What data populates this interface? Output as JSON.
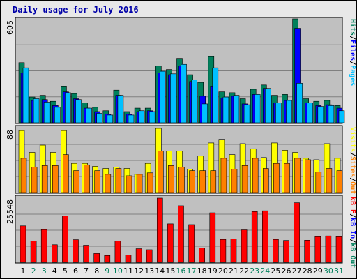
{
  "title": "Daily usage for July 2016",
  "colors": {
    "hits": "#00805c",
    "files": "#0000ff",
    "pages": "#00c0ff",
    "visits": "#ffff00",
    "sites": "#ff8000",
    "kbytes": "#ff0000",
    "label_green": "#00805c",
    "label_blue": "#0000ff",
    "label_cyan": "#00c0ff",
    "label_yellow": "#ffff00",
    "label_orange": "#ff8000",
    "label_red": "#ff0000",
    "label_sep": "#000000",
    "weekend_day": "#00805c",
    "weekday": "#000000"
  },
  "chart_data": [
    {
      "type": "bar",
      "panel": "top",
      "max_label": "605",
      "ylim": [
        0,
        605
      ],
      "legend": [
        {
          "text": "Hits",
          "color_key": "label_green"
        },
        {
          "text": "/",
          "color_key": "label_sep"
        },
        {
          "text": "Files",
          "color_key": "label_blue"
        },
        {
          "text": "/",
          "color_key": "label_sep"
        },
        {
          "text": "Pages",
          "color_key": "label_cyan"
        }
      ],
      "series": [
        {
          "name": "Hits",
          "color_key": "hits",
          "values": [
            350,
            150,
            160,
            125,
            210,
            170,
            115,
            90,
            70,
            190,
            65,
            85,
            85,
            330,
            310,
            375,
            280,
            235,
            385,
            180,
            175,
            140,
            195,
            220,
            160,
            165,
            605,
            140,
            125,
            130,
            100
          ]
        },
        {
          "name": "Files",
          "color_key": "files",
          "values": [
            290,
            130,
            135,
            100,
            180,
            140,
            85,
            65,
            50,
            160,
            50,
            65,
            70,
            290,
            280,
            330,
            240,
            155,
            210,
            145,
            155,
            110,
            165,
            200,
            115,
            130,
            550,
            115,
            100,
            105,
            85
          ]
        },
        {
          "name": "Pages",
          "color_key": "pages",
          "values": [
            320,
            140,
            120,
            90,
            175,
            135,
            85,
            55,
            45,
            160,
            45,
            70,
            65,
            300,
            285,
            340,
            250,
            110,
            320,
            150,
            160,
            105,
            165,
            200,
            115,
            130,
            230,
            115,
            95,
            100,
            70
          ]
        }
      ]
    },
    {
      "type": "bar",
      "panel": "middle",
      "max_label": "88",
      "ylim": [
        0,
        88
      ],
      "legend": [
        {
          "text": "Visits",
          "color_key": "label_yellow"
        },
        {
          "text": "/",
          "color_key": "label_sep"
        },
        {
          "text": "Sites",
          "color_key": "label_orange"
        },
        {
          "text": "/",
          "color_key": "label_sep"
        },
        {
          "text": "Out",
          "color_key": "label_orange"
        }
      ],
      "series": [
        {
          "name": "Visits",
          "color_key": "visits",
          "values": [
            85,
            55,
            65,
            55,
            85,
            40,
            40,
            36,
            33,
            35,
            33,
            25,
            40,
            88,
            57,
            57,
            32,
            50,
            68,
            73,
            52,
            67,
            60,
            48,
            68,
            58,
            55,
            47,
            45,
            67,
            47
          ]
        },
        {
          "name": "Sites",
          "color_key": "sites",
          "values": [
            47,
            35,
            37,
            37,
            52,
            30,
            38,
            30,
            25,
            33,
            23,
            25,
            27,
            57,
            37,
            35,
            30,
            30,
            30,
            47,
            32,
            37,
            47,
            33,
            40,
            40,
            47,
            45,
            28,
            33,
            30
          ]
        }
      ]
    },
    {
      "type": "bar",
      "panel": "bottom",
      "max_label": "25548",
      "ylim": [
        0,
        25548
      ],
      "legend": [
        {
          "text": "kB F",
          "color_key": "label_red"
        },
        {
          "text": "/",
          "color_key": "label_sep"
        },
        {
          "text": "kB In",
          "color_key": "label_blue"
        },
        {
          "text": "/",
          "color_key": "label_sep"
        },
        {
          "text": "kB Out",
          "color_key": "label_green"
        }
      ],
      "series": [
        {
          "name": "kB F",
          "color_key": "kbytes",
          "values": [
            14500,
            8500,
            13000,
            7000,
            18500,
            9000,
            6800,
            3500,
            2700,
            8500,
            2900,
            5400,
            5000,
            25548,
            15300,
            22500,
            15000,
            5700,
            19700,
            9100,
            9300,
            12900,
            20200,
            20500,
            9100,
            8700,
            23700,
            8800,
            10200,
            10500,
            10200
          ]
        }
      ]
    }
  ],
  "x_labels": [
    "1",
    "2",
    "3",
    "4",
    "5",
    "6",
    "7",
    "8",
    "9",
    "10",
    "11",
    "12",
    "13",
    "14",
    "15",
    "16",
    "17",
    "18",
    "19",
    "20",
    "21",
    "22",
    "23",
    "24",
    "25",
    "26",
    "27",
    "28",
    "29",
    "30",
    "31"
  ],
  "weekend_days": [
    2,
    3,
    9,
    10,
    16,
    17,
    23,
    24,
    30,
    31
  ]
}
